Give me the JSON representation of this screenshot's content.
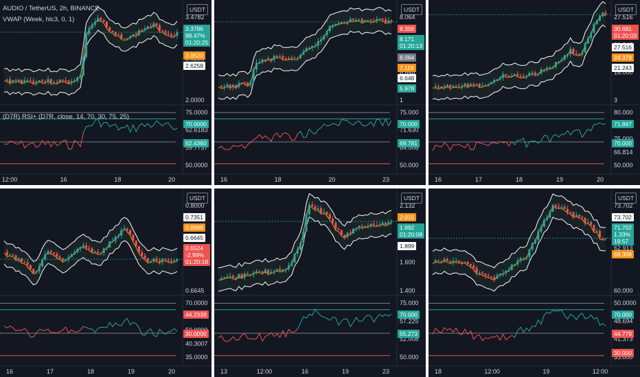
{
  "header": {
    "symbol": "AUDIO / TetherUS, 2h, BINANCE",
    "vwap": "VWAP (Week, hlc3, 0, 1)",
    "rsi": "(D7R) RSI+ (D7R, close, 14, 70, 30, 75, 25)"
  },
  "currency": "USDT",
  "colors": {
    "background": "#131722",
    "up": "#26a69a",
    "down": "#ef5350",
    "vwap_orange": "#f7931a",
    "band": "#ffffff",
    "grid": "#2a2e39",
    "neutral": "#787b86"
  },
  "panels": [
    {
      "price_ticks": [
        "3.4782",
        "2.6258",
        "2.0000"
      ],
      "price_labels": [
        {
          "text": "3.3786\n98.47%\n01:20:25",
          "bg": "#26a69a",
          "color": "#ffffff"
        },
        {
          "text": "3.0520",
          "bg": "#f7931a",
          "color": "#ffffff"
        },
        {
          "text": "2.6258",
          "bg": "#ffffff",
          "color": "#131722"
        }
      ],
      "rsi_ticks": [
        "75.0000",
        "62.6183",
        "59.7757",
        "50.0000"
      ],
      "rsi_labels": [
        {
          "text": "70.0000",
          "bg": "#26a69a",
          "color": "#ffffff"
        },
        {
          "text": "62.4360",
          "bg": "#26a69a",
          "color": "#ffffff"
        }
      ],
      "time_ticks": [
        "12:00",
        "16",
        "18",
        "20"
      ]
    },
    {
      "price_ticks": [
        "8.064",
        "7.587",
        "6.648",
        "1"
      ],
      "price_labels": [
        {
          "text": "8.356",
          "bg": "#ef5350",
          "color": "#ffffff"
        },
        {
          "text": "8.171\n01:20:13",
          "bg": "#26a69a",
          "color": "#ffffff"
        },
        {
          "text": "8.064",
          "bg": "#787b86",
          "color": "#ffffff"
        },
        {
          "text": "7.118",
          "bg": "#f7931a",
          "color": "#ffffff"
        },
        {
          "text": "6.648",
          "bg": "#ffffff",
          "color": "#131722"
        },
        {
          "text": "5.978",
          "bg": "#26a69a",
          "color": "#ffffff"
        }
      ],
      "rsi_ticks": [
        "75.000",
        "71.630",
        "64.006",
        "50.000"
      ],
      "rsi_labels": [
        {
          "text": "70.000",
          "bg": "#26a69a",
          "color": "#ffffff"
        },
        {
          "text": "69.781",
          "bg": "#26a69a",
          "color": "#ffffff"
        }
      ],
      "time_ticks": [
        "16",
        "18",
        "20",
        "23"
      ]
    },
    {
      "price_ticks": [
        "27.516",
        "21.243",
        "16.000",
        "3"
      ],
      "price_labels": [
        {
          "text": "30.681\n01:20:03",
          "bg": "#ef5350",
          "color": "#ffffff"
        },
        {
          "text": "27.516",
          "bg": "#ffffff",
          "color": "#131722"
        },
        {
          "text": "24.379",
          "bg": "#f7931a",
          "color": "#ffffff"
        },
        {
          "text": "21.243",
          "bg": "#ffffff",
          "color": "#131722"
        }
      ],
      "rsi_ticks": [
        "80.000",
        "75.909",
        "75.000",
        "66.814",
        "50.000"
      ],
      "rsi_labels": [
        {
          "text": "71.847",
          "bg": "#26a69a",
          "color": "#ffffff"
        },
        {
          "text": "70.000",
          "bg": "#26a69a",
          "color": "#ffffff"
        }
      ],
      "time_ticks": [
        "16",
        "17",
        "18",
        "19",
        "20"
      ]
    },
    {
      "price_ticks": [
        "0.8000",
        "0.7351",
        "0.6645"
      ],
      "price_labels": [
        {
          "text": "0.7351",
          "bg": "#ffffff",
          "color": "#131722"
        },
        {
          "text": "0.6998",
          "bg": "#f7931a",
          "color": "#ffffff"
        },
        {
          "text": "0.6645",
          "bg": "#ffffff",
          "color": "#131722"
        },
        {
          "text": "0.6524\n-2.99%\n01:20:18",
          "bg": "#ef5350",
          "color": "#ffffff"
        }
      ],
      "rsi_ticks": [
        "70.0000",
        "51.6952",
        "50.0000",
        "40.3007",
        "35.0000"
      ],
      "rsi_labels": [
        {
          "text": "44.2339",
          "bg": "#ef5350",
          "color": "#ffffff"
        },
        {
          "text": "30.0000",
          "bg": "#ef5350",
          "color": "#ffffff"
        }
      ],
      "time_ticks": [
        "16",
        "17",
        "18",
        "19",
        "20"
      ]
    },
    {
      "price_ticks": [
        "2.132",
        "1.899",
        "1.600",
        "1.400"
      ],
      "price_labels": [
        {
          "text": "2.015",
          "bg": "#f7931a",
          "color": "#ffffff"
        },
        {
          "text": "1.992\n01:20:08",
          "bg": "#26a69a",
          "color": "#ffffff"
        },
        {
          "text": "1.899",
          "bg": "#ffffff",
          "color": "#131722"
        }
      ],
      "rsi_ticks": [
        "75.000",
        "57.225",
        "52.008",
        "50.000"
      ],
      "rsi_labels": [
        {
          "text": "70.000",
          "bg": "#26a69a",
          "color": "#ffffff"
        },
        {
          "text": "55.273",
          "bg": "#26a69a",
          "color": "#ffffff"
        }
      ],
      "time_ticks": [
        "13",
        "12:00",
        "16",
        "19",
        "23"
      ]
    },
    {
      "price_ticks": [
        "73.702",
        "62.913",
        "60.000"
      ],
      "price_labels": [
        {
          "text": "73.702",
          "bg": "#ffffff",
          "color": "#131722"
        },
        {
          "text": "71.702\n1.33%\n19:57",
          "bg": "#26a69a",
          "color": "#ffffff"
        },
        {
          "text": "68.308",
          "bg": "#f7931a",
          "color": "#ffffff"
        }
      ],
      "rsi_ticks": [
        "50.0000",
        "48.694",
        "41.373",
        "35.000"
      ],
      "rsi_labels": [
        {
          "text": "70.000",
          "bg": "#26a69a",
          "color": "#ffffff"
        },
        {
          "text": "44.779",
          "bg": "#ef5350",
          "color": "#ffffff"
        },
        {
          "text": "30.000",
          "bg": "#ef5350",
          "color": "#ffffff"
        }
      ],
      "time_ticks": [
        "18",
        "12:00",
        "19",
        "12:00"
      ]
    }
  ]
}
